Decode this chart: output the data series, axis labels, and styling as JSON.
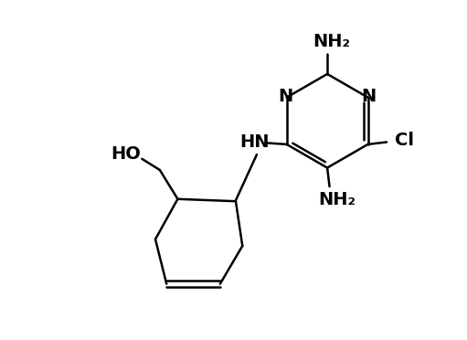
{
  "background_color": "#ffffff",
  "line_color": "#000000",
  "line_width": 1.8,
  "font_size": 14,
  "fig_width": 5.11,
  "fig_height": 3.72,
  "dpi": 100,
  "xlim": [
    0,
    10
  ],
  "ylim": [
    0,
    7.5
  ]
}
